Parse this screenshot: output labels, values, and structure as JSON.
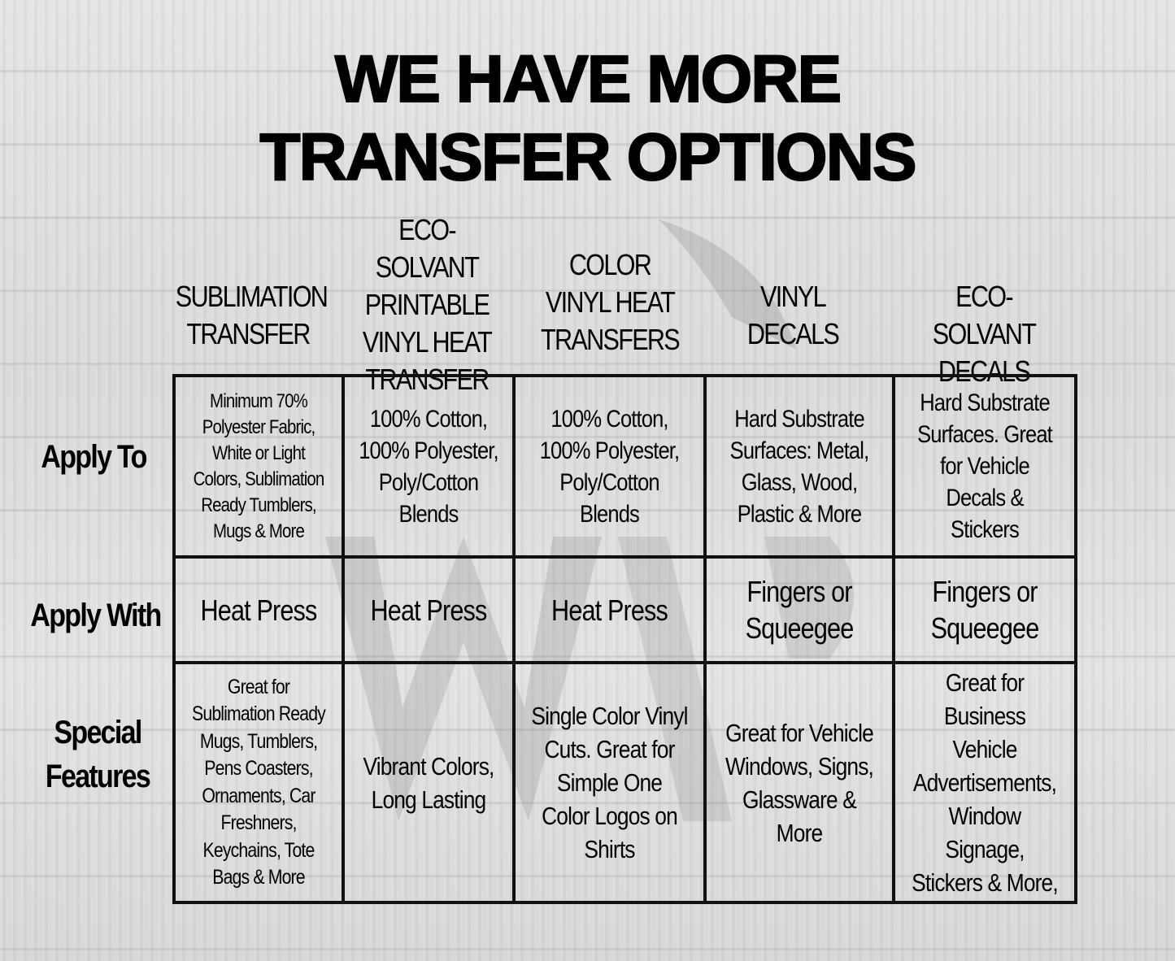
{
  "title": {
    "line1": "WE HAVE MORE",
    "line2": "TRANSFER OPTIONS"
  },
  "columns": [
    {
      "label": "SUBLIMATION TRANSFER"
    },
    {
      "label": "ECO-SOLVANT PRINTABLE VINYL HEAT TRANSFER"
    },
    {
      "label": "COLOR VINYL HEAT TRANSFERS"
    },
    {
      "label": "VINYL DECALS"
    },
    {
      "label": "ECO-SOLVANT DECALS"
    }
  ],
  "rows": [
    {
      "label": "Apply To",
      "cells": [
        "Minimum 70% Polyester Fabric, White or Light Colors, Sublimation Ready Tumblers, Mugs & More",
        "100% Cotton, 100% Polyester, Poly/Cotton Blends",
        "100% Cotton, 100% Polyester, Poly/Cotton Blends",
        "Hard Substrate Surfaces: Metal, Glass, Wood, Plastic & More",
        "Hard Substrate Surfaces. Great for Vehicle Decals & Stickers"
      ]
    },
    {
      "label": "Apply With",
      "cells": [
        "Heat Press",
        "Heat Press",
        "Heat Press",
        "Fingers or Squeegee",
        "Fingers or Squeegee"
      ]
    },
    {
      "label": "Special Features",
      "cells": [
        "Great for Sublimation Ready Mugs, Tumblers, Pens Coasters, Ornaments, Car Freshners, Keychains, Tote Bags & More",
        "Vibrant Colors, Long Lasting",
        "Single Color Vinyl Cuts. Great for Simple One Color Logos on Shirts",
        "Great for Vehicle Windows, Signs, Glassware & More",
        "Great for Business Vehicle Advertisements, Window Signage, Stickers & More,"
      ]
    }
  ]
}
